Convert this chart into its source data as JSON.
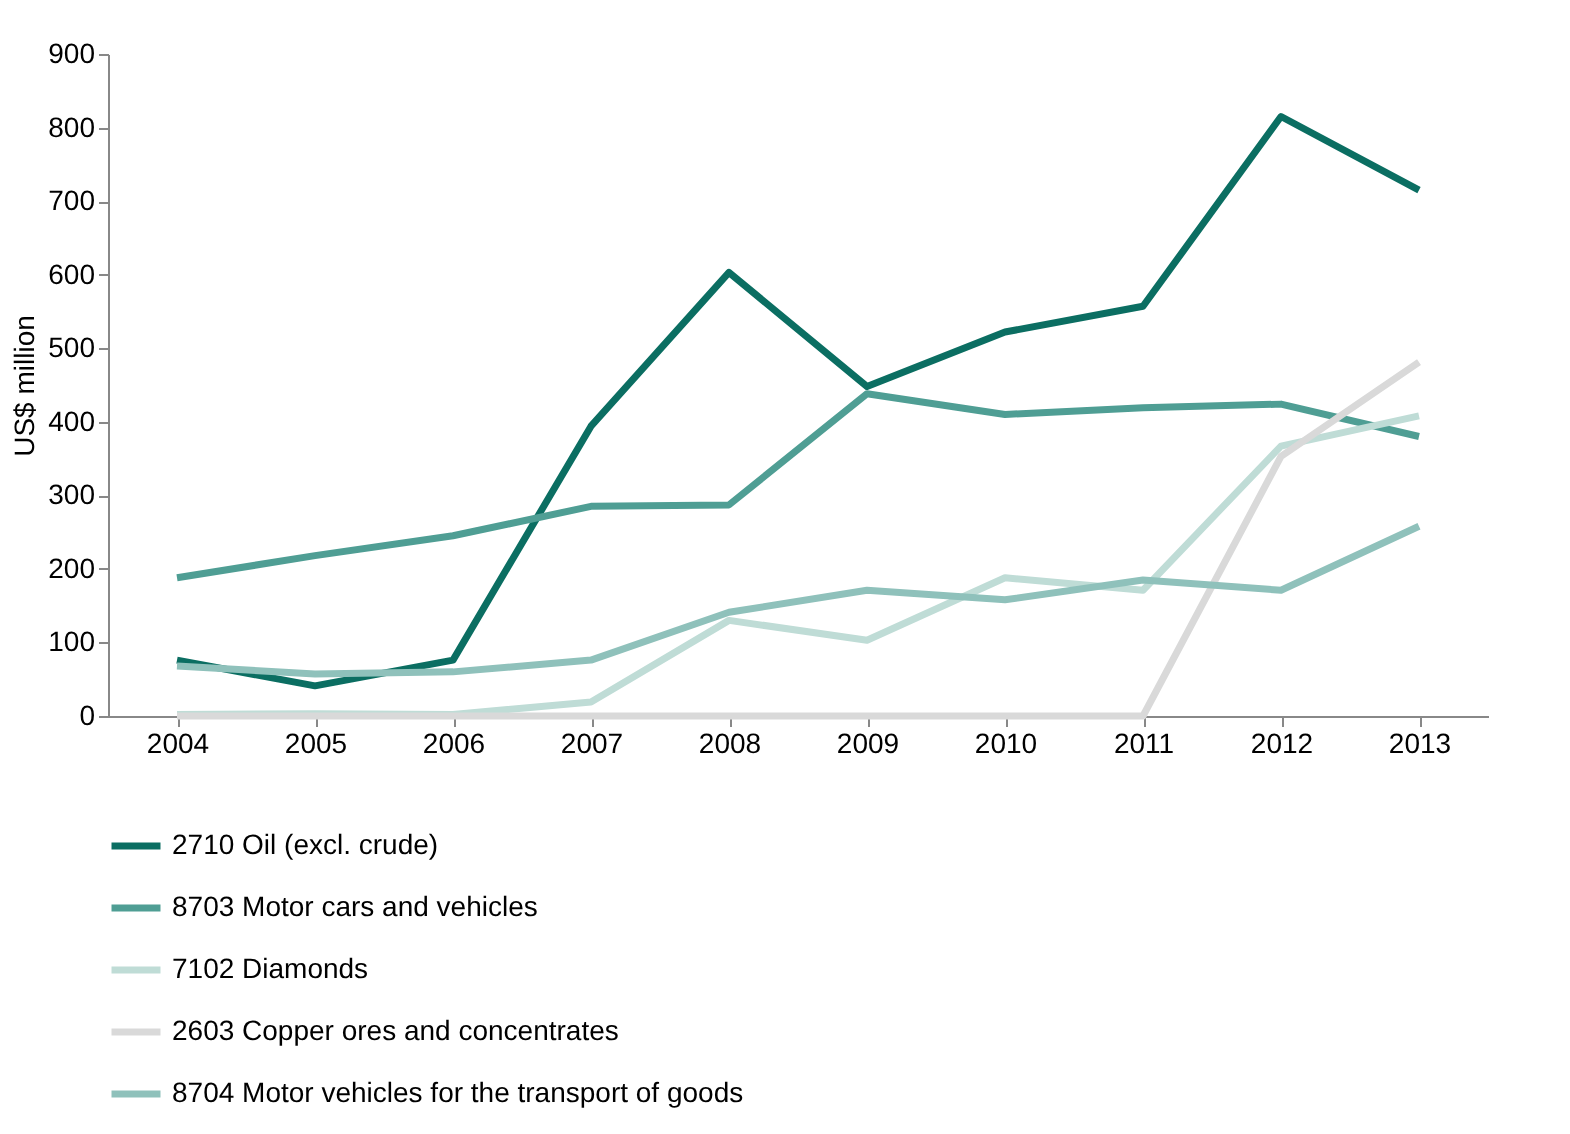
{
  "chart_data": {
    "type": "line",
    "ylabel": "US$ million",
    "categories": [
      "2004",
      "2005",
      "2006",
      "2007",
      "2008",
      "2009",
      "2010",
      "2011",
      "2012",
      "2013"
    ],
    "series": [
      {
        "name": "2710 Oil (excl. crude)",
        "color": "#0b6e62",
        "values": [
          76,
          41,
          76,
          394,
          603,
          448,
          522,
          557,
          815,
          715
        ]
      },
      {
        "name": "8703 Motor cars and vehicles",
        "color": "#4f9e94",
        "values": [
          188,
          218,
          245,
          285,
          287,
          438,
          410,
          419,
          424,
          380
        ]
      },
      {
        "name": "7102 Diamonds",
        "color": "#bfdcd6",
        "values": [
          2,
          3,
          2,
          19,
          130,
          103,
          188,
          171,
          367,
          408
        ]
      },
      {
        "name": "2603 Copper ores and concentrates",
        "color": "#d9d9d9",
        "values": [
          0,
          0,
          0,
          0,
          0,
          0,
          0,
          0,
          353,
          481
        ]
      },
      {
        "name": "8704 Motor vehicles for the transport of goods",
        "color": "#8fc1bb",
        "values": [
          68,
          57,
          60,
          76,
          141,
          171,
          158,
          185,
          171,
          258
        ]
      }
    ],
    "ylim": [
      0,
      900
    ],
    "yticks": [
      0,
      100,
      200,
      300,
      400,
      500,
      600,
      700,
      800,
      900
    ],
    "grid": false,
    "legend": "bottom",
    "marker": "none",
    "line_style": "solid"
  }
}
